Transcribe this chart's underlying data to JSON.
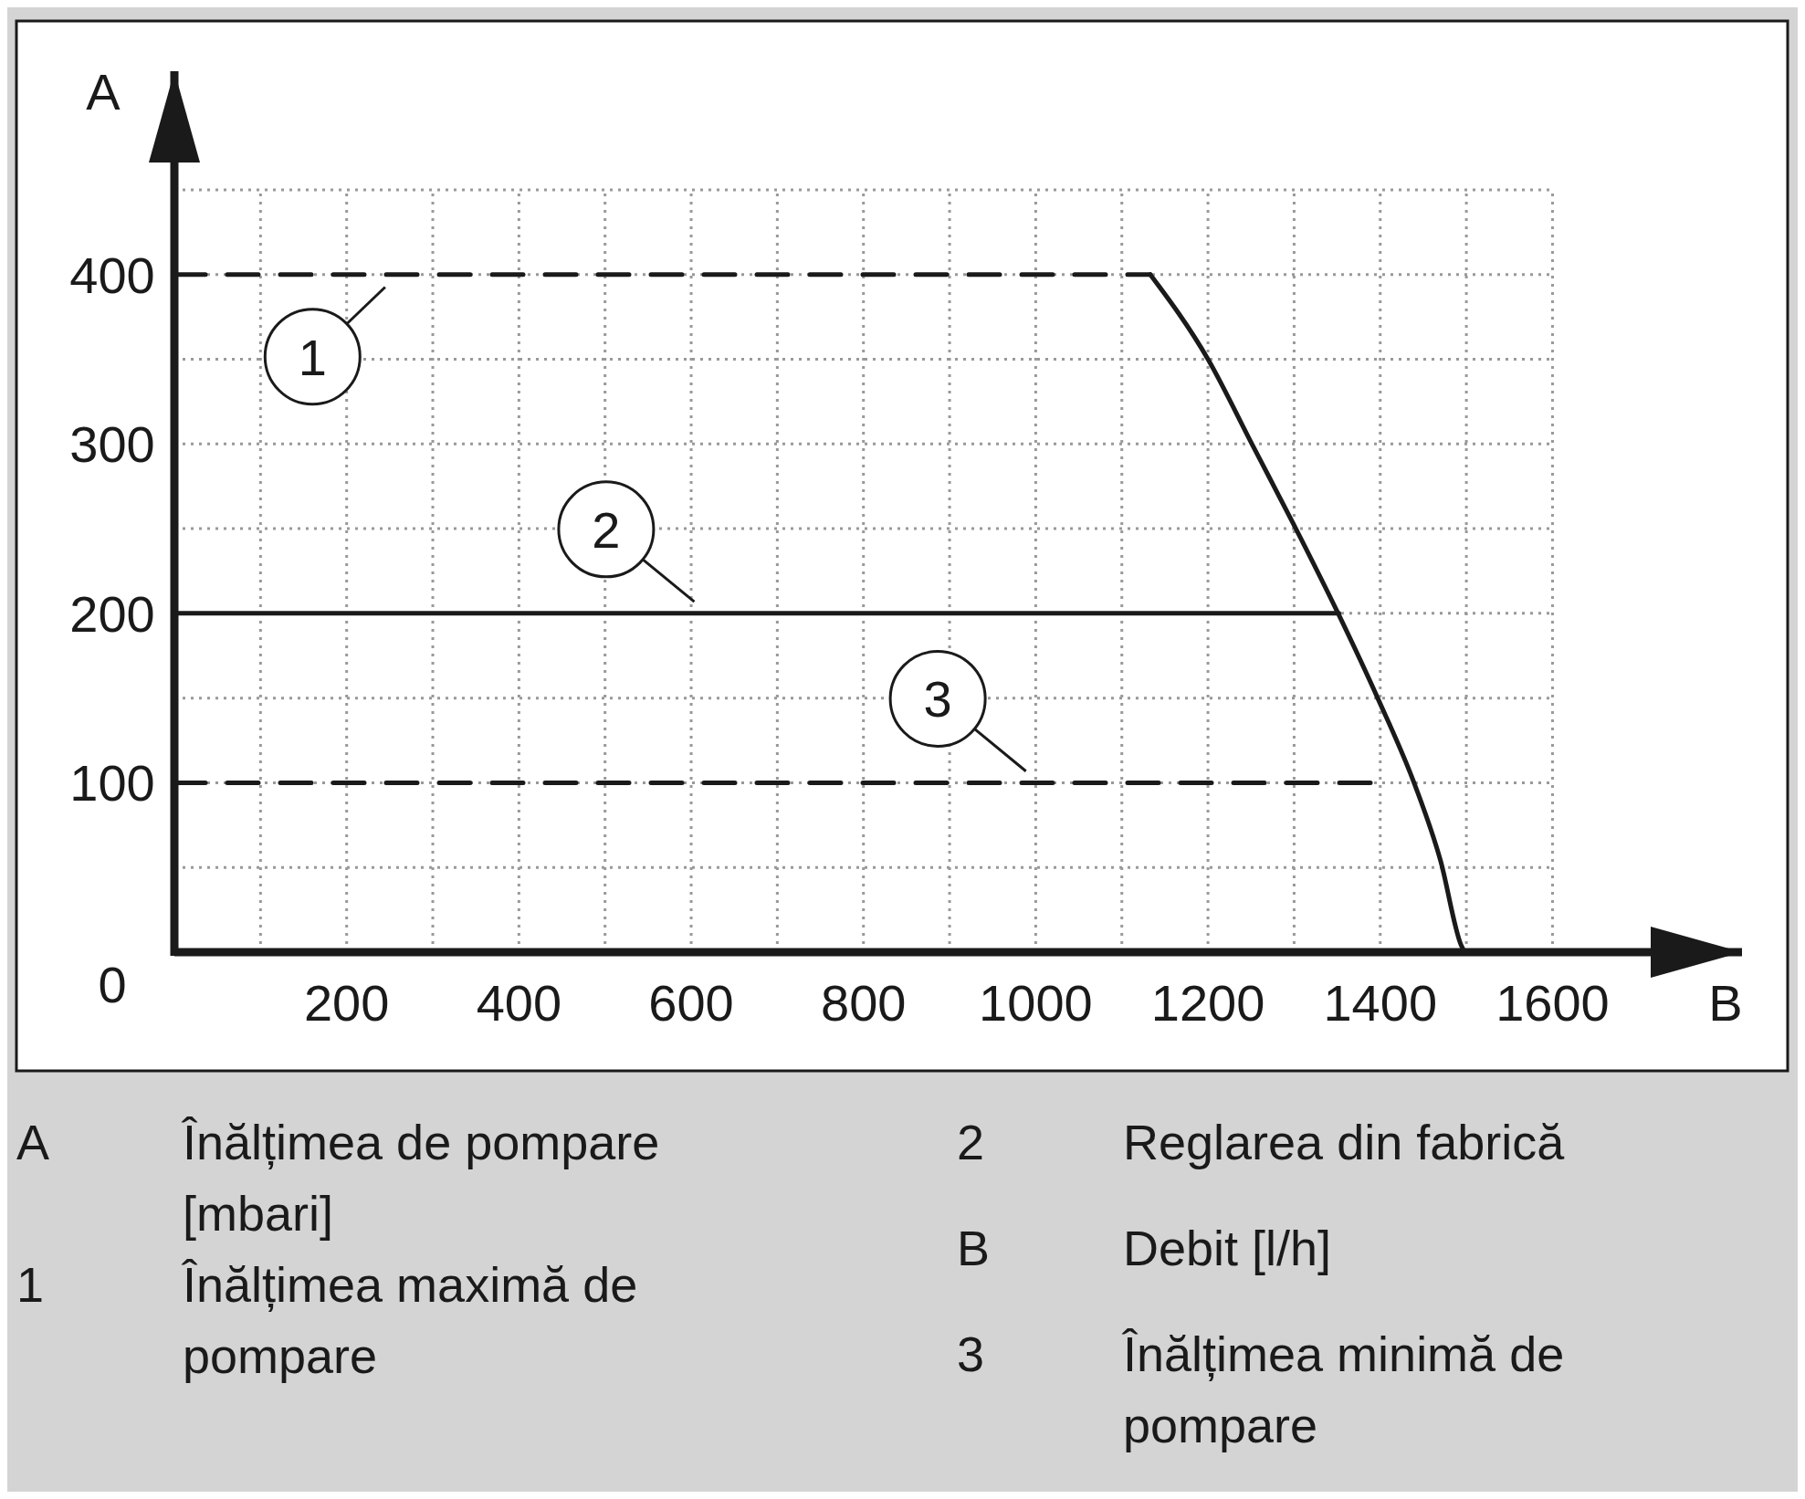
{
  "chart_data": {
    "type": "line",
    "xlabel": "B",
    "ylabel": "A",
    "xlim": [
      0,
      1820
    ],
    "ylim": [
      0,
      520
    ],
    "xticks": [
      {
        "value": 100,
        "label": null
      },
      200,
      {
        "value": 300,
        "label": null
      },
      400,
      {
        "value": 500,
        "label": null
      },
      600,
      {
        "value": 700,
        "label": null
      },
      800,
      {
        "value": 900,
        "label": null
      },
      1000,
      {
        "value": 1100,
        "label": null
      },
      1200,
      {
        "value": 1300,
        "label": null
      },
      1400,
      {
        "value": 1500,
        "label": null
      },
      1600
    ],
    "yticks": [
      0,
      {
        "value": 50,
        "label": null
      },
      100,
      {
        "value": 150,
        "label": null
      },
      200,
      {
        "value": 250,
        "label": null
      },
      300,
      {
        "value": 350,
        "label": null
      },
      400,
      {
        "value": 450,
        "label": null
      }
    ],
    "grid": true,
    "series": [
      {
        "color": "#1a1a1a",
        "line_style": "dashed",
        "x": [
          0,
          1133
        ],
        "values": [
          400,
          400
        ]
      },
      {
        "color": "#1a1a1a",
        "line_style": "solid",
        "x": [
          0,
          1352
        ],
        "values": [
          200,
          200
        ]
      },
      {
        "color": "#1a1a1a",
        "line_style": "dashed",
        "x": [
          0,
          1400
        ],
        "values": [
          100,
          100
        ]
      },
      {
        "color": "#1a1a1a",
        "line_style": "solid",
        "x": [
          1133,
          1200,
          1252,
          1300,
          1352,
          1397,
          1440,
          1470,
          1494,
          1498
        ],
        "values": [
          400,
          350,
          299,
          252,
          199,
          150,
          99,
          54,
          4,
          0
        ]
      }
    ],
    "annotations": [
      {
        "text": "1",
        "x": 260,
        "y": 400
      },
      {
        "text": "2",
        "x": 620,
        "y": 200
      },
      {
        "text": "3",
        "x": 1005,
        "y": 100
      },
      "A\tÎnălțimea de pompare [mbari]",
      "1\tÎnălțimea maximă de pompare",
      "2\tReglarea din fabrică",
      "B\tDebit [l/h]",
      "3\tÎnălțimea minimă de pompare"
    ]
  }
}
